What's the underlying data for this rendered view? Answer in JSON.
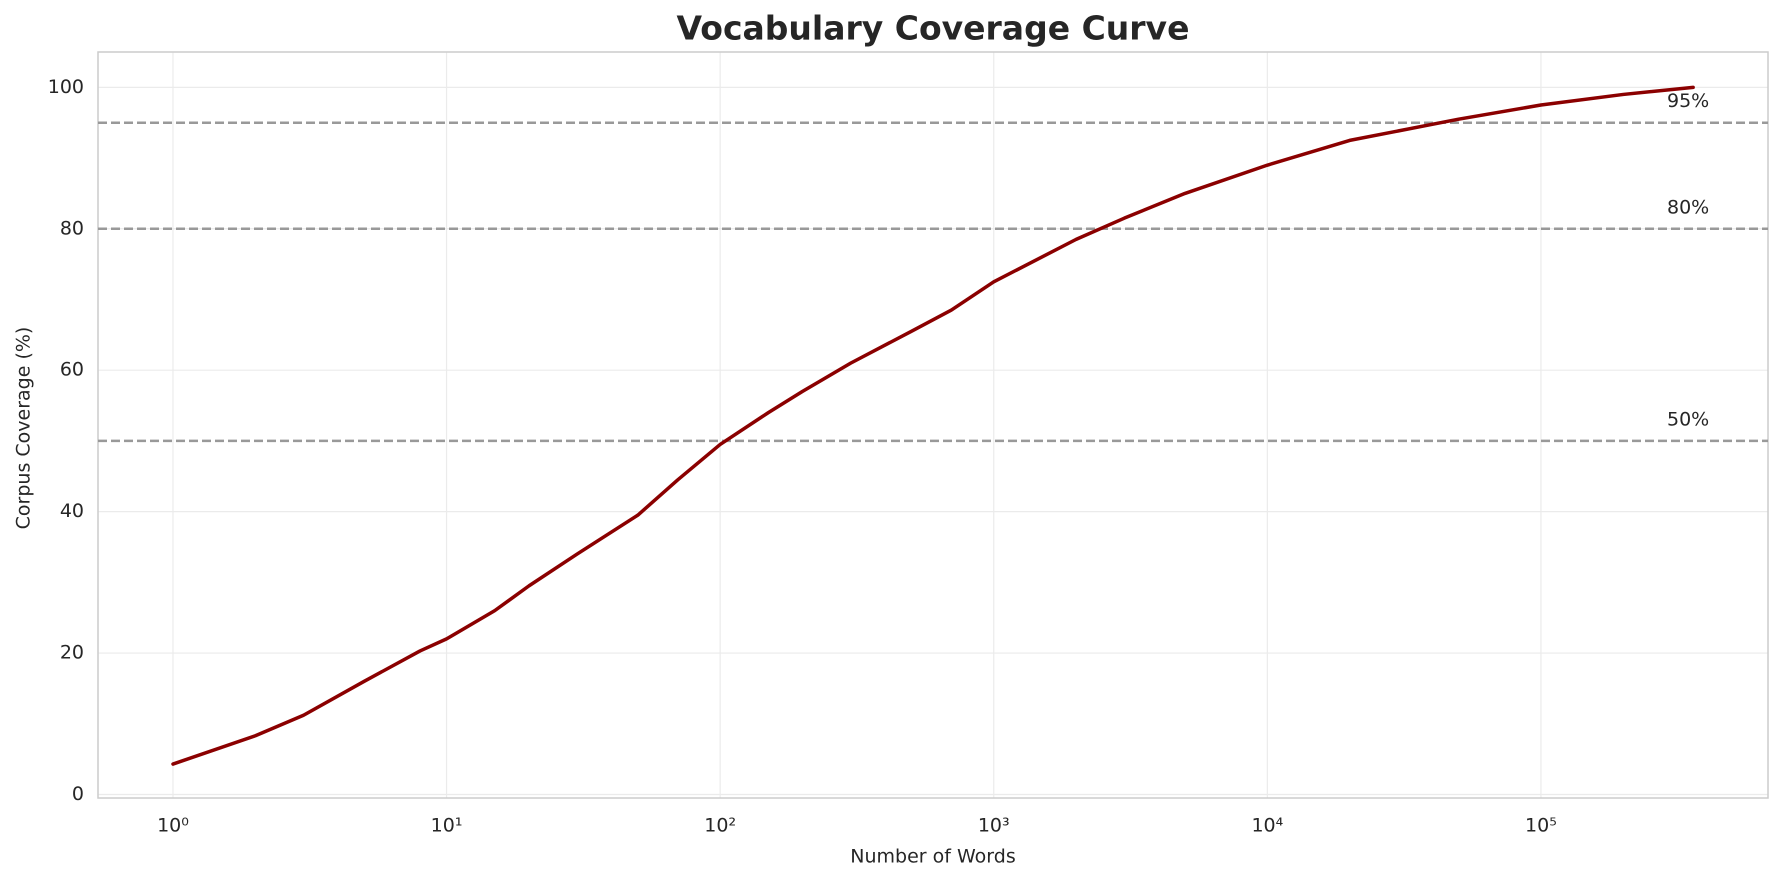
{
  "chart_data": {
    "type": "line",
    "title": "Vocabulary Coverage Curve",
    "xlabel": "Number of Words",
    "ylabel": "Corpus Coverage (%)",
    "xscale": "log",
    "grid": true,
    "xlim": [
      0.532,
      676000
    ],
    "ylim": [
      -0.5,
      105
    ],
    "xticks": [
      {
        "value": 1,
        "label": "10⁰"
      },
      {
        "value": 10,
        "label": "10¹"
      },
      {
        "value": 100,
        "label": "10²"
      },
      {
        "value": 1000,
        "label": "10³"
      },
      {
        "value": 10000,
        "label": "10⁴"
      },
      {
        "value": 100000,
        "label": "10⁵"
      }
    ],
    "yticks": [
      0,
      20,
      40,
      60,
      80,
      100
    ],
    "x": [
      1,
      2,
      3,
      5,
      8,
      10,
      15,
      20,
      30,
      50,
      70,
      100,
      150,
      200,
      300,
      500,
      700,
      1000,
      2000,
      3000,
      5000,
      10000,
      20000,
      50000,
      100000,
      200000,
      360000
    ],
    "series": [
      {
        "color": "#8b0000",
        "values": [
          4.3,
          8.3,
          11.2,
          16,
          20.3,
          22,
          26,
          29.5,
          34,
          39.5,
          44.5,
          49.5,
          54,
          57,
          61,
          65.5,
          68.5,
          72.5,
          78.5,
          81.5,
          85,
          89,
          92.5,
          95.5,
          97.5,
          99,
          100
        ]
      }
    ],
    "reference_lines": [
      {
        "value": 95,
        "label": "95%"
      },
      {
        "value": 80,
        "label": "80%"
      },
      {
        "value": 50,
        "label": "50%"
      }
    ],
    "reference_color": "#999999"
  }
}
